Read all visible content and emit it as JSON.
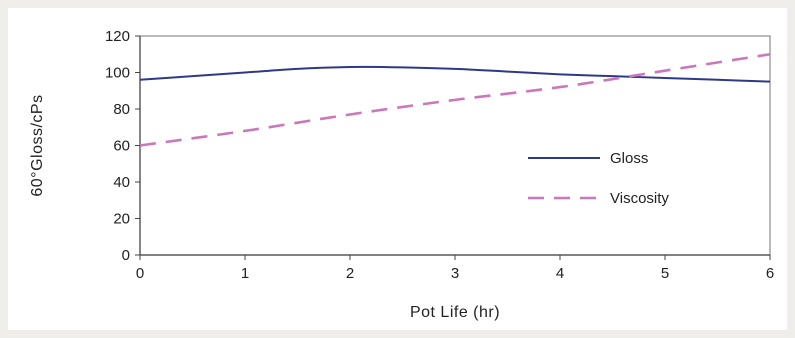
{
  "chart_data": {
    "type": "line",
    "title": "",
    "xlabel": "Pot Life (hr)",
    "ylabel": "60°Gloss/cPs",
    "xlim": [
      0,
      6
    ],
    "ylim": [
      0,
      120
    ],
    "x_ticks": [
      "0",
      "1",
      "2",
      "3",
      "4",
      "5",
      "6"
    ],
    "y_ticks": [
      "0",
      "20",
      "40",
      "60",
      "80",
      "100",
      "120"
    ],
    "grid": false,
    "legend_position": "right-middle",
    "series": [
      {
        "name": "Gloss",
        "color": "#2e3a87",
        "style": "solid",
        "x": [
          0,
          0.5,
          1,
          1.5,
          2,
          2.3,
          3,
          3.5,
          4,
          4.5,
          5,
          5.5,
          6
        ],
        "y": [
          96,
          98,
          100,
          102,
          103,
          103,
          102,
          100.5,
          99,
          98,
          97,
          96,
          95
        ]
      },
      {
        "name": "Viscosity",
        "color": "#cc77bb",
        "style": "dashed",
        "x": [
          0,
          1,
          2,
          3,
          4,
          5,
          6
        ],
        "y": [
          60,
          68,
          77,
          85,
          92,
          101,
          110
        ]
      }
    ]
  }
}
